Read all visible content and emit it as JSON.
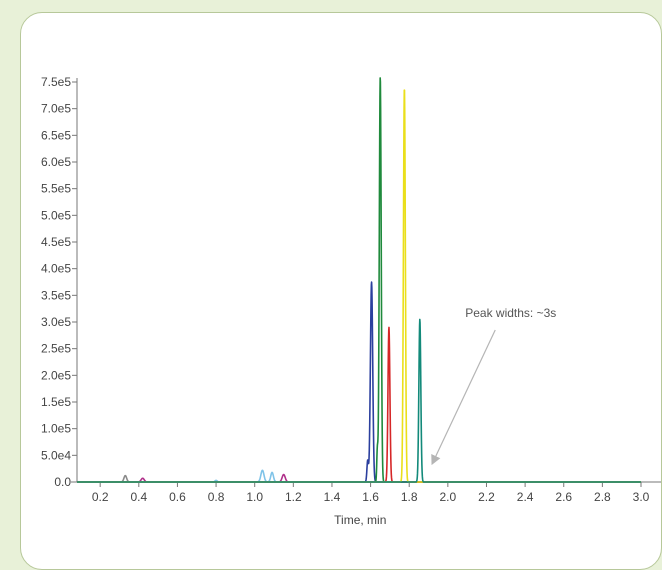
{
  "chart_data": {
    "type": "line",
    "xlabel": "Time, min",
    "ylabel": "",
    "xlim": [
      0.08,
      3.0
    ],
    "ylim": [
      0,
      750000
    ],
    "x_ticks": [
      0.2,
      0.4,
      0.6,
      0.8,
      1.0,
      1.2,
      1.4,
      1.6,
      1.8,
      2.0,
      2.2,
      2.4,
      2.6,
      2.8,
      3.0
    ],
    "x_tick_labels": [
      "0.2",
      "0.4",
      "0.6",
      "0.8",
      "1.0",
      "1.2",
      "1.4",
      "1.6",
      "1.8",
      "2.0",
      "2.2",
      "2.4",
      "2.6",
      "2.8",
      "3.0"
    ],
    "y_ticks": [
      0,
      50000,
      100000,
      150000,
      200000,
      250000,
      300000,
      350000,
      400000,
      450000,
      500000,
      550000,
      600000,
      650000,
      700000,
      750000
    ],
    "y_tick_labels": [
      "0.0",
      "5.0e4",
      "1.0e5",
      "1.5e5",
      "2.0e5",
      "2.5e5",
      "3.0e5",
      "3.5e5",
      "4.0e5",
      "4.5e5",
      "5.0e5",
      "5.5e5",
      "6.0e5",
      "6.5e5",
      "7.0e5",
      "7.5e5"
    ],
    "grid": false,
    "series": [
      {
        "color": "#8a8a8a",
        "peaks": [
          {
            "x": 0.33,
            "y": 12000,
            "w": 0.007
          }
        ]
      },
      {
        "color": "#b0308a",
        "peaks": [
          {
            "x": 0.42,
            "y": 7000,
            "w": 0.008
          },
          {
            "x": 1.15,
            "y": 14000,
            "w": 0.008
          }
        ]
      },
      {
        "color": "#7fc3e8",
        "peaks": [
          {
            "x": 1.04,
            "y": 22000,
            "w": 0.008
          },
          {
            "x": 1.09,
            "y": 18000,
            "w": 0.007
          },
          {
            "x": 0.8,
            "y": 3000,
            "w": 0.006
          }
        ]
      },
      {
        "color": "#2b3f9e",
        "peaks": [
          {
            "x": 1.605,
            "y": 375000,
            "w": 0.006
          },
          {
            "x": 1.585,
            "y": 40000,
            "w": 0.004
          }
        ]
      },
      {
        "color": "#1f8a3c",
        "peaks": [
          {
            "x": 1.65,
            "y": 760000,
            "w": 0.005
          },
          {
            "x": 1.635,
            "y": 60000,
            "w": 0.003
          }
        ]
      },
      {
        "color": "#d62728",
        "peaks": [
          {
            "x": 1.695,
            "y": 290000,
            "w": 0.005
          }
        ]
      },
      {
        "color": "#eadf1b",
        "peaks": [
          {
            "x": 1.775,
            "y": 740000,
            "w": 0.005
          }
        ]
      },
      {
        "color": "#138a7a",
        "peaks": [
          {
            "x": 1.855,
            "y": 305000,
            "w": 0.005
          }
        ]
      }
    ],
    "annotations": [
      {
        "text": "Peak widths: ~3s",
        "x": 2.09,
        "y": 300000,
        "arrow_to": [
          1.92,
          35000
        ]
      }
    ]
  }
}
